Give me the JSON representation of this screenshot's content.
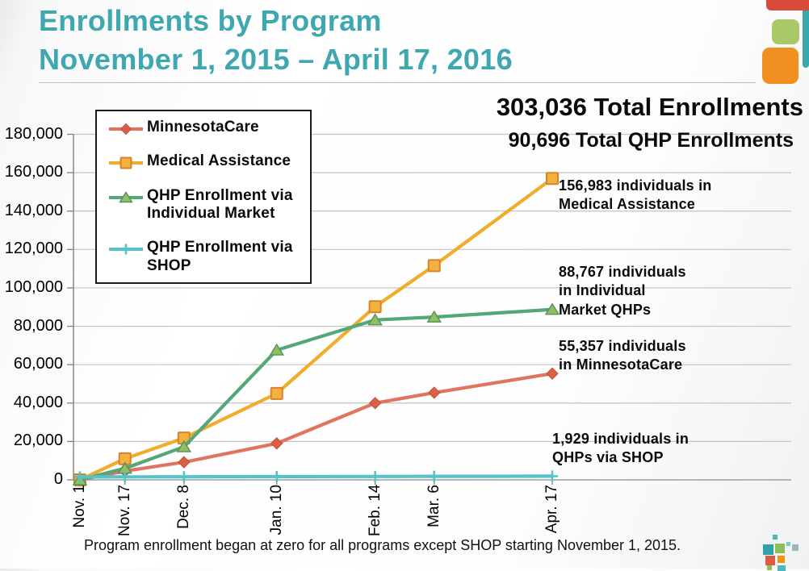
{
  "header": {
    "title_line1": "Enrollments by Program",
    "title_line2": "November 1, 2015 – April 17, 2016"
  },
  "stats": {
    "total": "303,036 Total Enrollments",
    "qhp_total": "90,696 Total QHP Enrollments"
  },
  "annotations": [
    {
      "id": "medical-assistance",
      "text": "156,983 individuals in\nMedical Assistance"
    },
    {
      "id": "individual-market",
      "text": "88,767 individuals\nin Individual\nMarket QHPs"
    },
    {
      "id": "minnesotacare",
      "text": "55,357 individuals\nin MinnesotaCare"
    },
    {
      "id": "shop",
      "text": "1,929 individuals in\nQHPs via SHOP"
    }
  ],
  "footnote": "Program enrollment began at zero for all programs except SHOP starting November 1, 2015.",
  "brand_colors": {
    "title_teal": "#3ea7b0",
    "logo_red": "#d84b38",
    "logo_green": "#a9c868",
    "logo_orange": "#f19021",
    "logo_teal": "#3ba6ae"
  },
  "chart_data": {
    "type": "line",
    "title": "Enrollments by Program, November 1, 2015 – April 17, 2016",
    "categories": [
      "Nov. 1",
      "Nov. 17",
      "Dec. 8",
      "Jan. 10",
      "Feb. 14",
      "Mar. 6",
      "Apr. 17"
    ],
    "x_day_offsets": [
      0,
      16,
      37,
      70,
      105,
      126,
      168
    ],
    "x_axis_total_days": 253,
    "ylim": [
      0,
      180000
    ],
    "y_tick_step": 20000,
    "grid": true,
    "legend_position": "top-left-inside",
    "series": [
      {
        "name": "MinnesotaCare",
        "marker": "diamond",
        "color": "#e0745e",
        "marker_fill": "#db5f47",
        "marker_stroke": "#c2503c",
        "values": [
          0,
          4600,
          9200,
          19000,
          40000,
          45400,
          55357
        ]
      },
      {
        "name": "Medical Assistance",
        "marker": "square",
        "color": "#f1ac2c",
        "marker_fill": "#f3b23e",
        "marker_stroke": "#d8832c",
        "values": [
          0,
          11000,
          21800,
          45000,
          90200,
          111600,
          156983
        ]
      },
      {
        "name": "QHP Enrollment via Individual Market",
        "marker": "triangle",
        "color": "#53a878",
        "marker_fill": "#8fbf5e",
        "marker_stroke": "#569060",
        "values": [
          0,
          6000,
          17200,
          67600,
          83300,
          84800,
          88767
        ]
      },
      {
        "name": "QHP Enrollment via SHOP",
        "marker": "plus",
        "color": "#54c4ca",
        "marker_fill": "#54c4ca",
        "marker_stroke": "#54c4ca",
        "values": [
          1500,
          1550,
          1600,
          1700,
          1750,
          1850,
          1929
        ]
      }
    ]
  }
}
